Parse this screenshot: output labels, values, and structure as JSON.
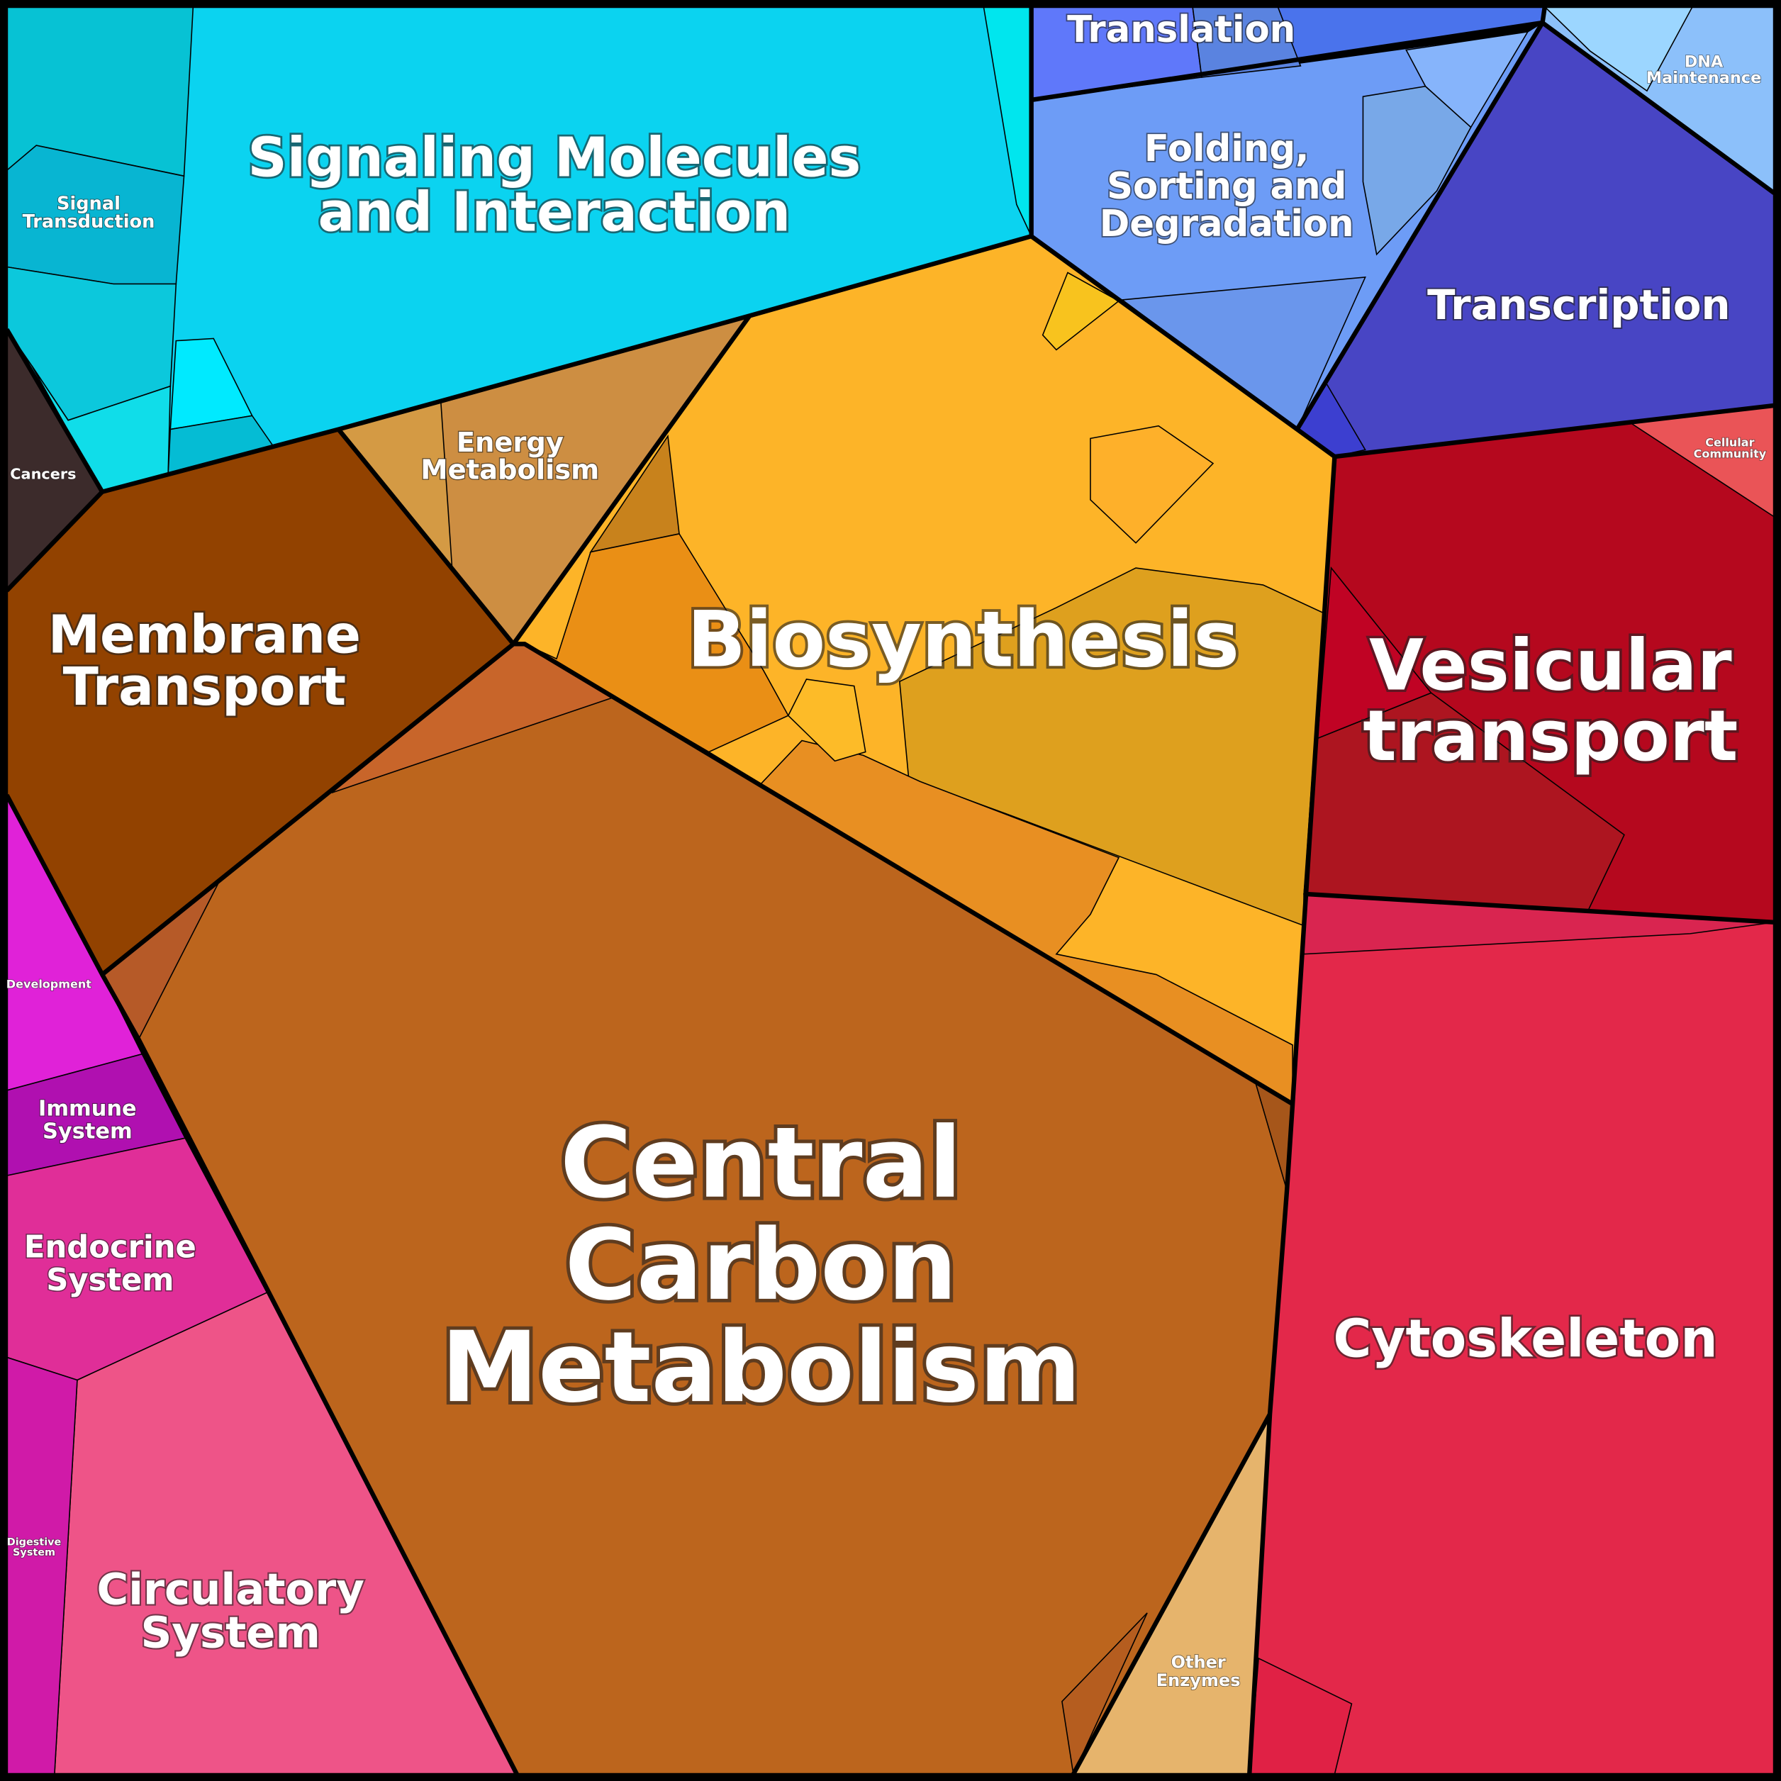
{
  "regions": [
    {
      "lines": [
        "Signaling Molecules",
        "and Interaction"
      ]
    },
    {
      "lines": [
        "Signal",
        "Transduction"
      ]
    },
    {
      "lines": [
        "Cancers"
      ]
    },
    {
      "lines": [
        "Membrane",
        "Transport"
      ]
    },
    {
      "lines": [
        "Energy",
        "Metabolism"
      ]
    },
    {
      "lines": [
        "Biosynthesis"
      ]
    },
    {
      "lines": [
        "Central",
        "Carbon",
        "Metabolism"
      ]
    },
    {
      "lines": [
        "Translation"
      ]
    },
    {
      "lines": [
        "Folding,",
        "Sorting and",
        "Degradation"
      ]
    },
    {
      "lines": [
        "DNA",
        "Maintenance"
      ]
    },
    {
      "lines": [
        "Transcription"
      ]
    },
    {
      "lines": [
        "Vesicular",
        "transport"
      ]
    },
    {
      "lines": [
        "Cellular",
        "Community"
      ]
    },
    {
      "lines": [
        "Cytoskeleton"
      ]
    },
    {
      "lines": [
        "Other",
        "Enzymes"
      ]
    },
    {
      "lines": [
        "Development"
      ]
    },
    {
      "lines": [
        "Immune",
        "System"
      ]
    },
    {
      "lines": [
        "Endocrine",
        "System"
      ]
    },
    {
      "lines": [
        "Digestive",
        "System"
      ]
    },
    {
      "lines": [
        "Circulatory",
        "System"
      ]
    }
  ]
}
